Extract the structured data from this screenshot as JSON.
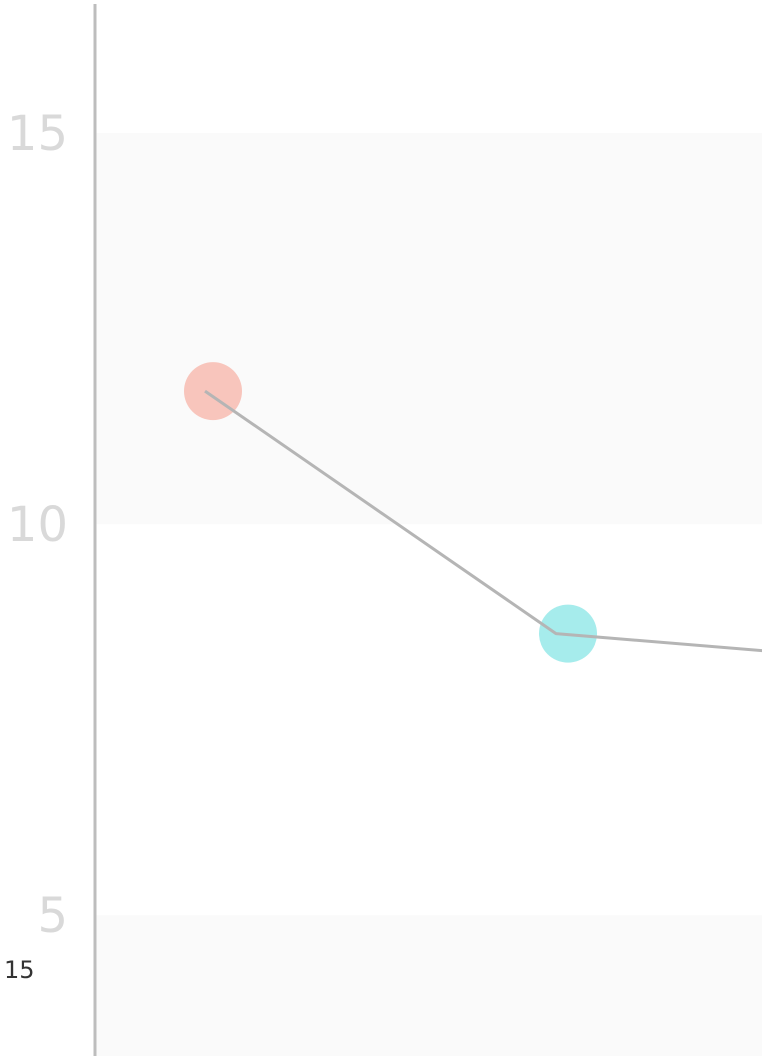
{
  "chart_data": {
    "type": "line",
    "x": [
      1,
      2,
      3
    ],
    "y": [
      11.7,
      8.6,
      8.3
    ],
    "point_colors": [
      "#f8c5bc",
      "#a6ecec",
      null
    ],
    "line_color": "#b5b5b5",
    "ylim": [
      3.2,
      16.7
    ],
    "yticks": [
      5,
      10,
      15
    ],
    "ytick_labels": [
      "5",
      "10",
      "15"
    ],
    "band_color": "#fafafa",
    "axis_color": "#bdbdbd",
    "grid": false
  },
  "corner_label": "15"
}
